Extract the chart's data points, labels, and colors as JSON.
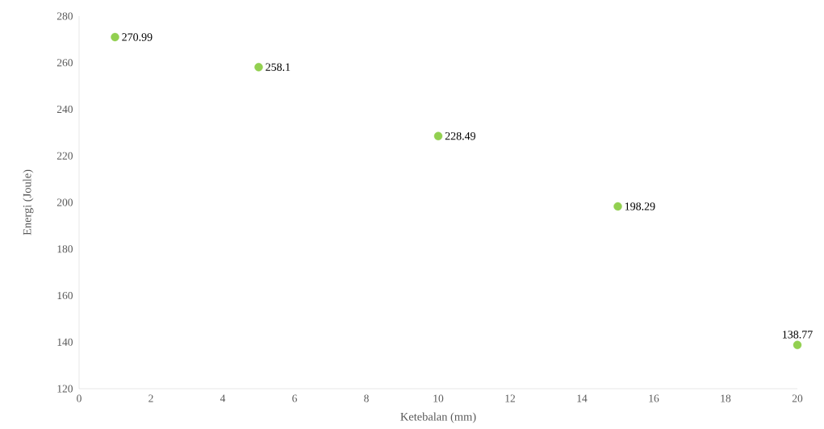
{
  "chart_data": {
    "type": "scatter",
    "xlabel": "Ketebalan (mm)",
    "ylabel": "Energi (Joule)",
    "x": [
      1,
      5,
      10,
      15,
      20
    ],
    "values": [
      270.99,
      258.1,
      228.49,
      198.29,
      138.77
    ],
    "color": "#92d050",
    "marker": "circle",
    "data_labels": true,
    "grid": false,
    "xlim": [
      0,
      20
    ],
    "xticks": [
      0,
      2,
      4,
      6,
      8,
      10,
      12,
      14,
      16,
      18,
      20
    ],
    "ylim": [
      120,
      280
    ],
    "yticks": [
      120,
      140,
      160,
      180,
      200,
      220,
      240,
      260,
      280
    ]
  }
}
